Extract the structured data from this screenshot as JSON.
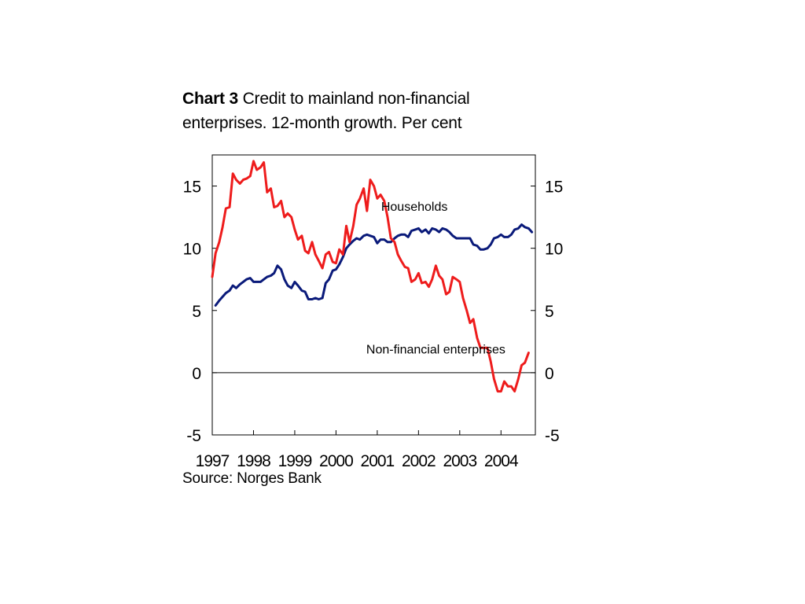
{
  "title": {
    "bold": "Chart 3",
    "text": "Credit to mainland non-financial enterprises. 12-month growth. Per cent"
  },
  "source": "Source: Norges Bank",
  "chart_data": {
    "type": "line",
    "ylim": [
      -5,
      17.5
    ],
    "yticks": [
      -5,
      0,
      5,
      10,
      15
    ],
    "ytick_labels": [
      "-5",
      "0",
      "5",
      "10",
      "15"
    ],
    "xlim": [
      1997.0,
      2004.833
    ],
    "xticks": [
      1997,
      1998,
      1999,
      2000,
      2001,
      2002,
      2003,
      2004
    ],
    "xtick_labels": [
      "1997",
      "1998",
      "1999",
      "2000",
      "2001",
      "2002",
      "2003",
      "2004"
    ],
    "axes": "left and right",
    "grid": false,
    "zero_line": true,
    "series": [
      {
        "name": "Households",
        "color": "#0a1a7a",
        "label_pos": {
          "x": 2001.9,
          "y": 13.0
        },
        "points": [
          [
            1997.08,
            5.4
          ],
          [
            1997.17,
            5.8
          ],
          [
            1997.25,
            6.1
          ],
          [
            1997.33,
            6.4
          ],
          [
            1997.42,
            6.6
          ],
          [
            1997.5,
            7.0
          ],
          [
            1997.58,
            6.8
          ],
          [
            1997.67,
            7.1
          ],
          [
            1997.75,
            7.3
          ],
          [
            1997.83,
            7.5
          ],
          [
            1997.92,
            7.6
          ],
          [
            1998.0,
            7.3
          ],
          [
            1998.08,
            7.3
          ],
          [
            1998.17,
            7.3
          ],
          [
            1998.25,
            7.5
          ],
          [
            1998.33,
            7.7
          ],
          [
            1998.42,
            7.8
          ],
          [
            1998.5,
            8.0
          ],
          [
            1998.58,
            8.6
          ],
          [
            1998.67,
            8.3
          ],
          [
            1998.75,
            7.5
          ],
          [
            1998.83,
            7.0
          ],
          [
            1998.92,
            6.8
          ],
          [
            1999.0,
            7.3
          ],
          [
            1999.08,
            7.0
          ],
          [
            1999.17,
            6.6
          ],
          [
            1999.25,
            6.5
          ],
          [
            1999.33,
            5.9
          ],
          [
            1999.42,
            5.9
          ],
          [
            1999.5,
            6.0
          ],
          [
            1999.58,
            5.9
          ],
          [
            1999.67,
            6.0
          ],
          [
            1999.75,
            7.2
          ],
          [
            1999.83,
            7.5
          ],
          [
            1999.92,
            8.2
          ],
          [
            2000.0,
            8.3
          ],
          [
            2000.08,
            8.7
          ],
          [
            2000.17,
            9.3
          ],
          [
            2000.25,
            10.0
          ],
          [
            2000.33,
            10.3
          ],
          [
            2000.42,
            10.6
          ],
          [
            2000.5,
            10.8
          ],
          [
            2000.58,
            10.7
          ],
          [
            2000.67,
            11.0
          ],
          [
            2000.75,
            11.1
          ],
          [
            2000.83,
            11.0
          ],
          [
            2000.92,
            10.9
          ],
          [
            2001.0,
            10.4
          ],
          [
            2001.08,
            10.7
          ],
          [
            2001.17,
            10.7
          ],
          [
            2001.25,
            10.5
          ],
          [
            2001.33,
            10.5
          ],
          [
            2001.42,
            10.8
          ],
          [
            2001.5,
            11.0
          ],
          [
            2001.58,
            11.1
          ],
          [
            2001.67,
            11.1
          ],
          [
            2001.75,
            10.9
          ],
          [
            2001.83,
            11.4
          ],
          [
            2001.92,
            11.5
          ],
          [
            2002.0,
            11.6
          ],
          [
            2002.08,
            11.3
          ],
          [
            2002.17,
            11.5
          ],
          [
            2002.25,
            11.2
          ],
          [
            2002.33,
            11.6
          ],
          [
            2002.42,
            11.5
          ],
          [
            2002.5,
            11.3
          ],
          [
            2002.58,
            11.6
          ],
          [
            2002.67,
            11.5
          ],
          [
            2002.75,
            11.3
          ],
          [
            2002.83,
            11.0
          ],
          [
            2002.92,
            10.8
          ],
          [
            2003.0,
            10.8
          ],
          [
            2003.08,
            10.8
          ],
          [
            2003.17,
            10.8
          ],
          [
            2003.25,
            10.8
          ],
          [
            2003.33,
            10.3
          ],
          [
            2003.42,
            10.2
          ],
          [
            2003.5,
            9.9
          ],
          [
            2003.58,
            9.9
          ],
          [
            2003.67,
            10.0
          ],
          [
            2003.75,
            10.3
          ],
          [
            2003.83,
            10.8
          ],
          [
            2003.92,
            10.9
          ],
          [
            2004.0,
            11.1
          ],
          [
            2004.08,
            10.9
          ],
          [
            2004.17,
            10.9
          ],
          [
            2004.25,
            11.1
          ],
          [
            2004.33,
            11.5
          ],
          [
            2004.42,
            11.6
          ],
          [
            2004.5,
            11.9
          ],
          [
            2004.58,
            11.7
          ],
          [
            2004.67,
            11.6
          ],
          [
            2004.75,
            11.3
          ]
        ]
      },
      {
        "name": "Non-financial enterprises",
        "color": "#ee1c1c",
        "label_pos": {
          "x": 2002.42,
          "y": 1.55
        },
        "points": [
          [
            1997.0,
            7.7
          ],
          [
            1997.08,
            9.6
          ],
          [
            1997.17,
            10.5
          ],
          [
            1997.25,
            11.7
          ],
          [
            1997.33,
            13.2
          ],
          [
            1997.42,
            13.3
          ],
          [
            1997.5,
            16.0
          ],
          [
            1997.58,
            15.5
          ],
          [
            1997.67,
            15.2
          ],
          [
            1997.75,
            15.5
          ],
          [
            1997.83,
            15.6
          ],
          [
            1997.92,
            15.8
          ],
          [
            1998.0,
            17.0
          ],
          [
            1998.08,
            16.3
          ],
          [
            1998.17,
            16.5
          ],
          [
            1998.25,
            16.9
          ],
          [
            1998.33,
            14.5
          ],
          [
            1998.42,
            14.8
          ],
          [
            1998.5,
            13.3
          ],
          [
            1998.58,
            13.4
          ],
          [
            1998.67,
            13.8
          ],
          [
            1998.75,
            12.5
          ],
          [
            1998.83,
            12.8
          ],
          [
            1998.92,
            12.5
          ],
          [
            1999.0,
            11.5
          ],
          [
            1999.08,
            10.7
          ],
          [
            1999.17,
            11.0
          ],
          [
            1999.25,
            9.8
          ],
          [
            1999.33,
            9.6
          ],
          [
            1999.42,
            10.5
          ],
          [
            1999.5,
            9.5
          ],
          [
            1999.58,
            9.0
          ],
          [
            1999.67,
            8.4
          ],
          [
            1999.75,
            9.5
          ],
          [
            1999.83,
            9.7
          ],
          [
            1999.92,
            8.9
          ],
          [
            2000.0,
            8.8
          ],
          [
            2000.08,
            9.9
          ],
          [
            2000.17,
            9.5
          ],
          [
            2000.25,
            11.8
          ],
          [
            2000.33,
            10.5
          ],
          [
            2000.42,
            11.8
          ],
          [
            2000.5,
            13.5
          ],
          [
            2000.58,
            14.0
          ],
          [
            2000.67,
            14.8
          ],
          [
            2000.75,
            13.0
          ],
          [
            2000.83,
            15.5
          ],
          [
            2000.92,
            15.0
          ],
          [
            2001.0,
            14.0
          ],
          [
            2001.08,
            14.3
          ],
          [
            2001.17,
            13.8
          ],
          [
            2001.25,
            12.5
          ],
          [
            2001.33,
            10.8
          ],
          [
            2001.42,
            10.5
          ],
          [
            2001.5,
            9.5
          ],
          [
            2001.58,
            9.0
          ],
          [
            2001.67,
            8.5
          ],
          [
            2001.75,
            8.4
          ],
          [
            2001.83,
            7.3
          ],
          [
            2001.92,
            7.5
          ],
          [
            2002.0,
            8.0
          ],
          [
            2002.08,
            7.2
          ],
          [
            2002.17,
            7.3
          ],
          [
            2002.25,
            6.9
          ],
          [
            2002.33,
            7.5
          ],
          [
            2002.42,
            8.6
          ],
          [
            2002.5,
            7.8
          ],
          [
            2002.58,
            7.5
          ],
          [
            2002.67,
            6.3
          ],
          [
            2002.75,
            6.5
          ],
          [
            2002.83,
            7.7
          ],
          [
            2002.92,
            7.5
          ],
          [
            2003.0,
            7.3
          ],
          [
            2003.08,
            6.0
          ],
          [
            2003.17,
            5.0
          ],
          [
            2003.25,
            4.0
          ],
          [
            2003.33,
            4.3
          ],
          [
            2003.42,
            2.8
          ],
          [
            2003.5,
            2.0
          ],
          [
            2003.58,
            2.0
          ],
          [
            2003.67,
            2.0
          ],
          [
            2003.75,
            0.9
          ],
          [
            2003.83,
            -0.5
          ],
          [
            2003.92,
            -1.5
          ],
          [
            2004.0,
            -1.5
          ],
          [
            2004.08,
            -0.7
          ],
          [
            2004.17,
            -1.1
          ],
          [
            2004.25,
            -1.1
          ],
          [
            2004.33,
            -1.5
          ],
          [
            2004.42,
            -0.5
          ],
          [
            2004.5,
            0.6
          ],
          [
            2004.58,
            0.8
          ],
          [
            2004.67,
            1.6
          ]
        ]
      }
    ]
  }
}
